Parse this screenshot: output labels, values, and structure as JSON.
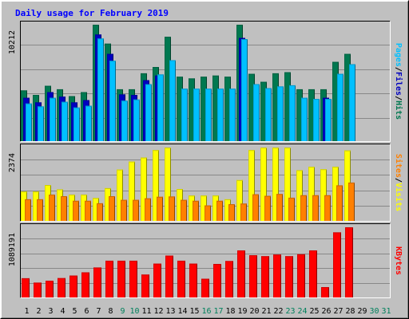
{
  "chart_data": {
    "type": "bar",
    "title": "Daily usage for February 2019",
    "days": [
      "1",
      "2",
      "3",
      "4",
      "5",
      "6",
      "7",
      "8",
      "9",
      "10",
      "11",
      "12",
      "13",
      "14",
      "15",
      "16",
      "17",
      "18",
      "19",
      "20",
      "21",
      "22",
      "23",
      "24",
      "25",
      "26",
      "27",
      "28",
      "29",
      "30",
      "31"
    ],
    "weekend_days": [
      "9",
      "10",
      "16",
      "17",
      "23",
      "24",
      "30",
      "31"
    ],
    "panels": [
      {
        "id": "top",
        "max_label": "10212",
        "ymax": 10212,
        "series": [
          {
            "name": "Hits",
            "color": "#007850",
            "values": [
              4450,
              4050,
              4850,
              4550,
              3950,
              4300,
              10212,
              8550,
              4550,
              4550,
              5950,
              6500,
              9150,
              5650,
              5500,
              5650,
              5750,
              5650,
              10212,
              5900,
              5200,
              5950,
              6050,
              4550,
              4550,
              4550,
              6950,
              7650
            ]
          },
          {
            "name": "Files",
            "color": "#0000C0",
            "values": [
              3800,
              3400,
              4300,
              3900,
              3400,
              3600,
              9350,
              7650,
              4100,
              4050,
              5350,
              5750,
              0,
              0,
              0,
              0,
              0,
              0,
              9050,
              0,
              0,
              0,
              0,
              0,
              0,
              3800,
              0,
              0
            ]
          },
          {
            "name": "Pages",
            "color": "#00C0FF",
            "values": [
              3300,
              3050,
              3800,
              3450,
              2950,
              3100,
              9000,
              7050,
              3550,
              3650,
              5000,
              5850,
              7100,
              4600,
              4600,
              4600,
              4600,
              4600,
              8950,
              5000,
              4650,
              4800,
              4900,
              3800,
              3700,
              3700,
              5900,
              6750
            ]
          }
        ]
      },
      {
        "id": "middle",
        "max_label": "2374",
        "ymax": 2374,
        "series": [
          {
            "name": "Visits",
            "color": "#FFFF00",
            "values": [
              950,
              950,
              1160,
              1020,
              850,
              850,
              740,
              1060,
              1660,
              1920,
              2050,
              2290,
              2374,
              1030,
              820,
              820,
              820,
              700,
              1320,
              2290,
              2374,
              2374,
              2374,
              1640,
              1750,
              1670,
              1750,
              2280
            ]
          },
          {
            "name": "Sites",
            "color": "#FF8000",
            "values": [
              700,
              700,
              850,
              800,
              650,
              650,
              570,
              800,
              680,
              680,
              730,
              780,
              790,
              680,
              650,
              500,
              650,
              540,
              560,
              860,
              810,
              870,
              750,
              830,
              830,
              830,
              1150,
              1240
            ]
          }
        ]
      },
      {
        "id": "bottom",
        "max_label": "1089191",
        "ymax": 1089191,
        "series": [
          {
            "name": "KBytes",
            "color": "#FF0000",
            "values": [
              298000,
              230000,
              260000,
              300000,
              340000,
              390000,
              465000,
              570000,
              570000,
              570000,
              355000,
              525000,
              650000,
              570000,
              525000,
              290000,
              520000,
              565000,
              730000,
              655000,
              640000,
              665000,
              640000,
              670000,
              730000,
              160000,
              1010000,
              1089191
            ]
          }
        ]
      }
    ],
    "ylabel_top": [
      "Pages",
      "Files",
      "Hits"
    ],
    "ylabel_middle": [
      "Sites",
      "Visits"
    ],
    "ylabel_bottom": [
      "KBytes"
    ],
    "colors": {
      "background": "#C0C0C0",
      "title": "#0000FF",
      "day": "#000000",
      "weekend_day": "#00805C",
      "grid": "#888888"
    }
  }
}
